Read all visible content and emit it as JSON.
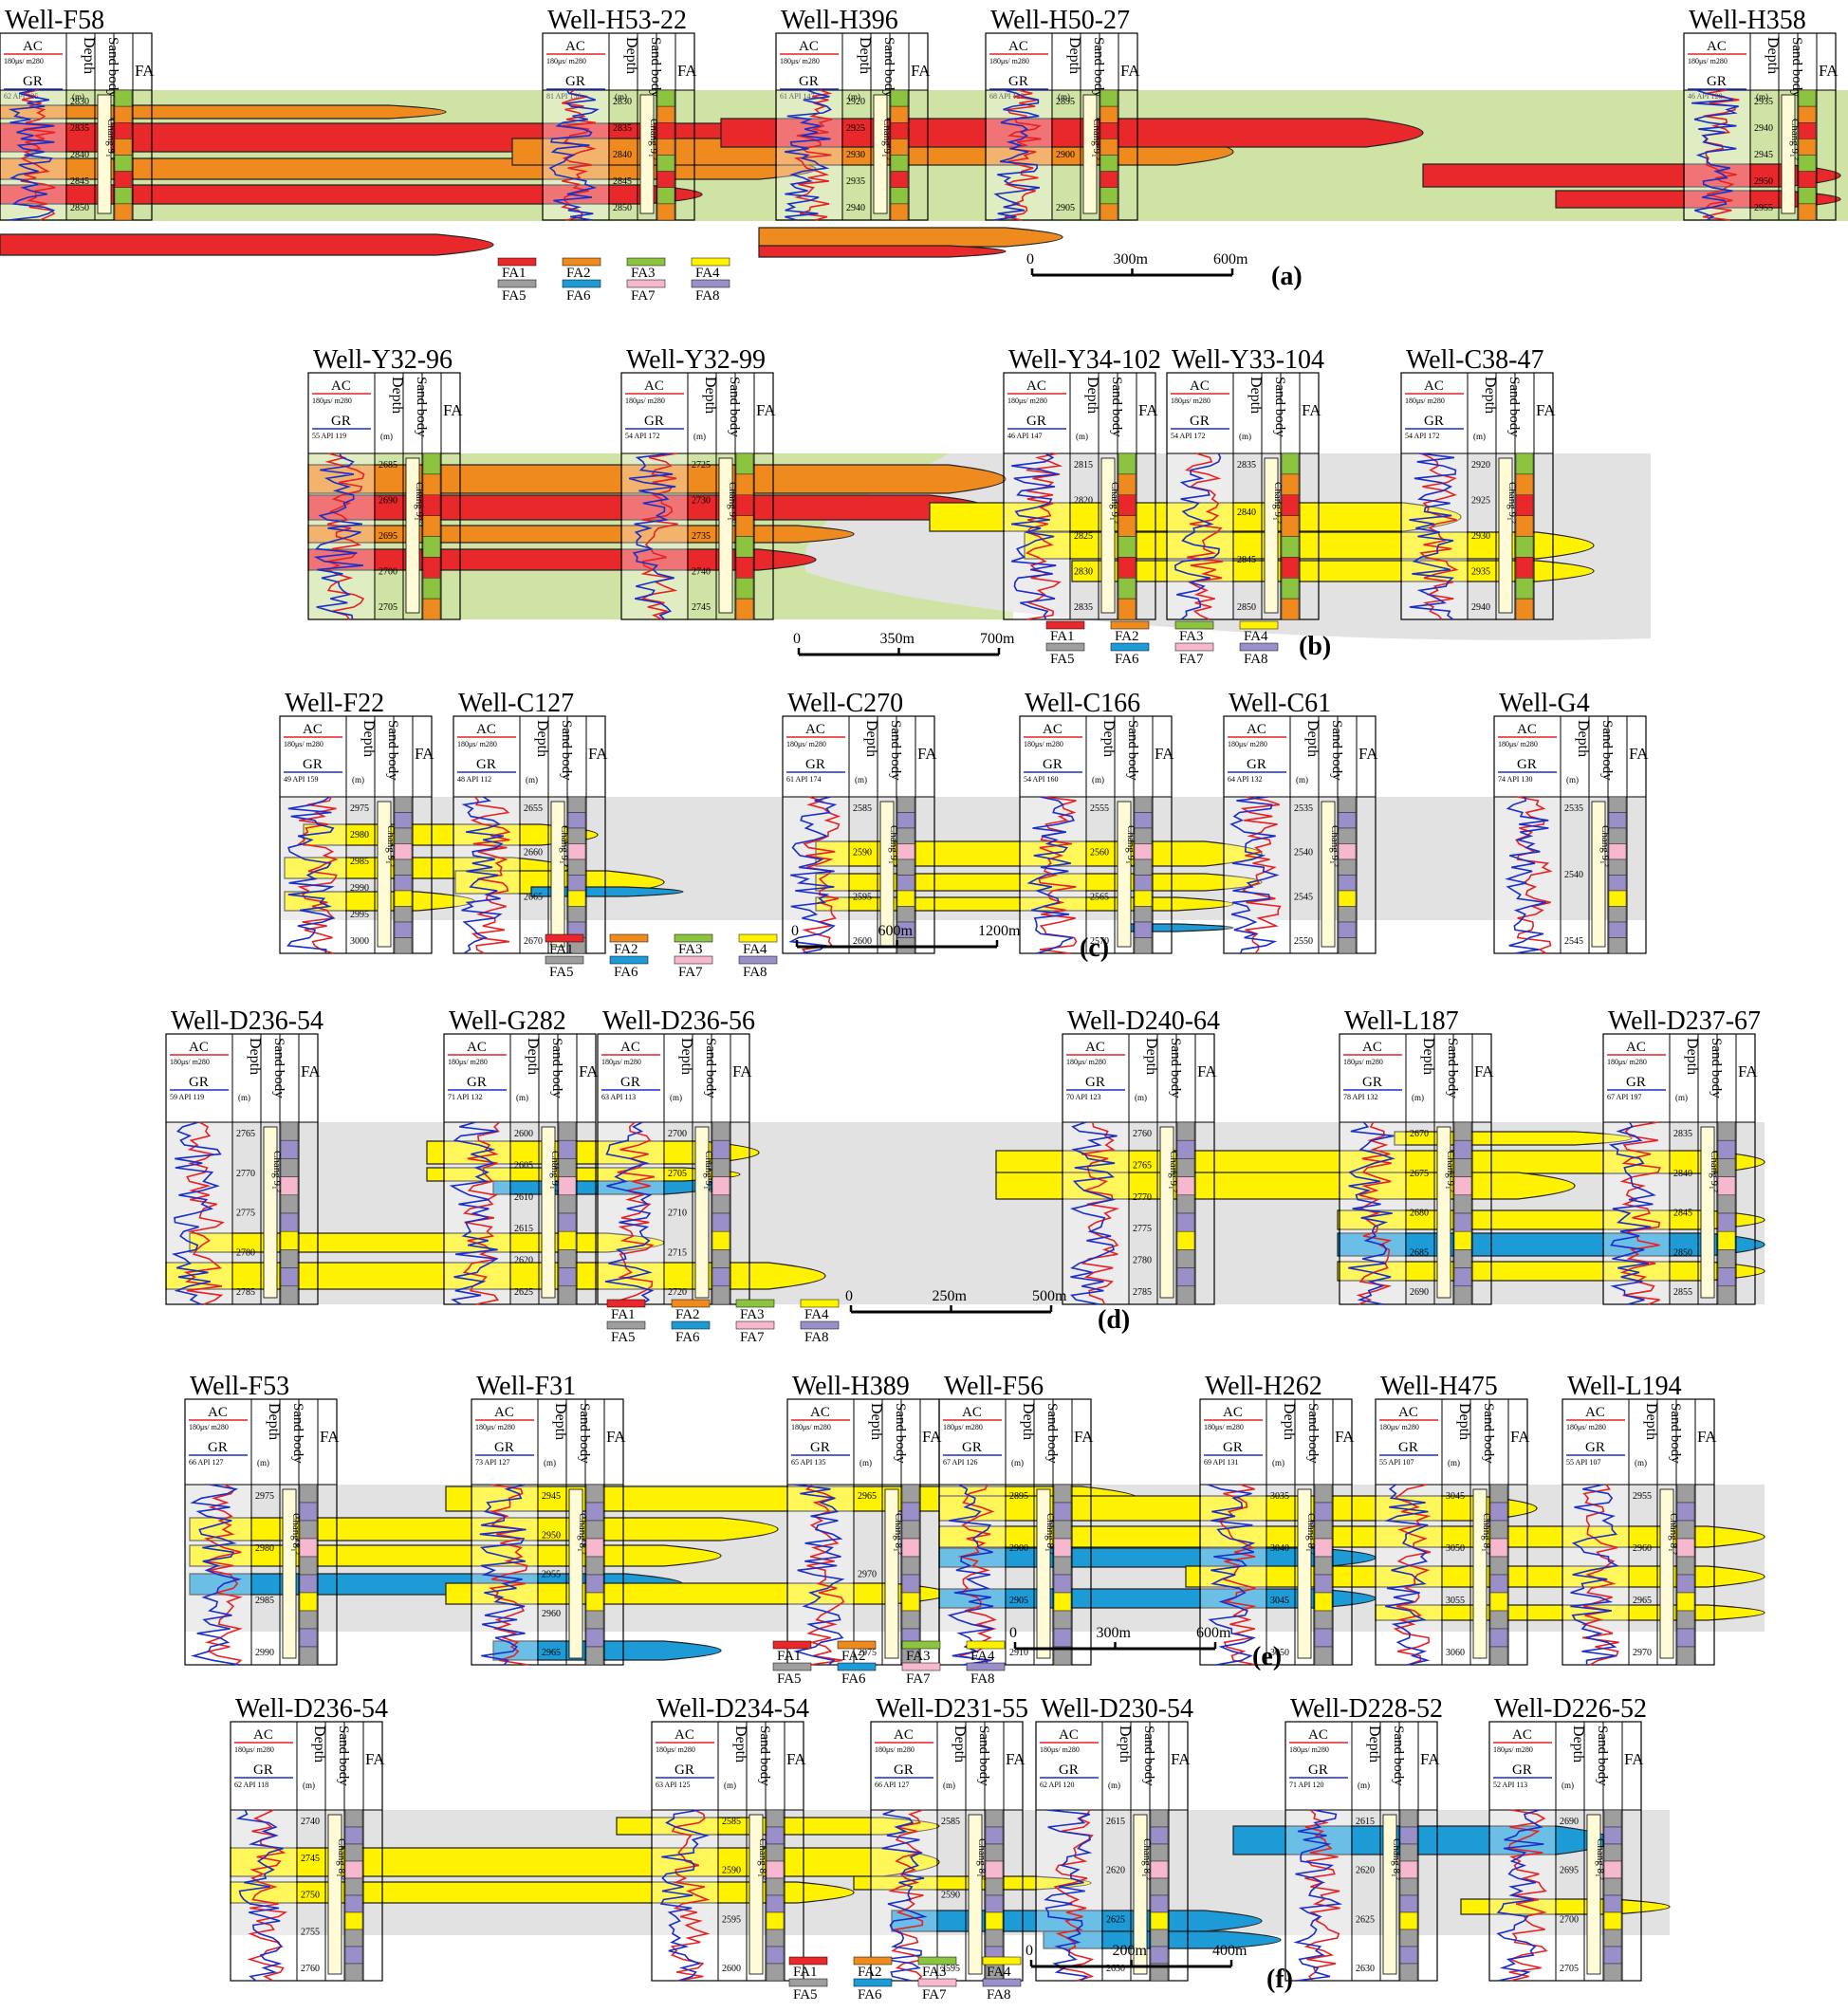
{
  "colors": {
    "FA1": "#e8282b",
    "FA2": "#ef8a1f",
    "FA3": "#8cc43f",
    "FA4": "#fff200",
    "FA5": "#9e9e9e",
    "FA6": "#1c9bd7",
    "FA7": "#f6b8cf",
    "FA8": "#9b8fc9",
    "bg_a": "#cfe4a4",
    "bg_other": "#e2e2e2",
    "ac_curve": "#e62224",
    "gr_curve": "#1a2ec8"
  },
  "legend_labels": [
    "FA1",
    "FA2",
    "FA3",
    "FA4",
    "FA5",
    "FA6",
    "FA7",
    "FA8"
  ],
  "header": {
    "ac": "AC",
    "ac_range": "180μs/ m280",
    "gr": "GR",
    "api": "API",
    "depth": "Depth",
    "unit": "(m)",
    "sand": "Sand body",
    "fa": "FA"
  },
  "panels": [
    {
      "label": "(a)",
      "bg": "bg_a",
      "scale": [
        "0",
        "300m",
        "600m"
      ],
      "wells": [
        {
          "name": "Well-F58",
          "gr_min": "62",
          "gr_max": "135",
          "depths": [
            "2830",
            "2835",
            "2840",
            "2845",
            "2850"
          ],
          "unit": "Chang 9₁²"
        },
        {
          "name": "Well-H53-22",
          "gr_min": "81",
          "gr_max": "156",
          "depths": [
            "2830",
            "2835",
            "2840",
            "2845",
            "2850"
          ],
          "unit": "Chang 9₁²"
        },
        {
          "name": "Well-H396",
          "gr_min": "61",
          "gr_max": "147",
          "depths": [
            "2920",
            "2925",
            "2930",
            "2935",
            "2940"
          ],
          "unit": "Chang 9₁²"
        },
        {
          "name": "Well-H50-27",
          "gr_min": "68",
          "gr_max": "122",
          "depths": [
            "2895",
            "2900",
            "2905"
          ],
          "unit": "Chang 9₁²"
        },
        {
          "name": "Well-H358",
          "gr_min": "46",
          "gr_max": "128",
          "depths": [
            "2935",
            "2940",
            "2945",
            "2950",
            "2955"
          ],
          "unit": "Chang 9₁²"
        }
      ]
    },
    {
      "label": "(b)",
      "bg": "bg_a",
      "scale": [
        "0",
        "350m",
        "700m"
      ],
      "wells": [
        {
          "name": "Well-Y32-96",
          "gr_min": "55",
          "gr_max": "119",
          "depths": [
            "2685",
            "2690",
            "2695",
            "2700",
            "2705"
          ],
          "unit": "Chang 9₁²"
        },
        {
          "name": "Well-Y32-99",
          "gr_min": "54",
          "gr_max": "172",
          "depths": [
            "2725",
            "2730",
            "2735",
            "2740",
            "2745"
          ],
          "unit": "Chang 9₁²"
        },
        {
          "name": "Well-Y34-102",
          "gr_min": "46",
          "gr_max": "147",
          "depths": [
            "2815",
            "2820",
            "2825",
            "2830",
            "2835"
          ],
          "unit": "Chang 9₁²"
        },
        {
          "name": "Well-Y33-104",
          "gr_min": "54",
          "gr_max": "172",
          "depths": [
            "2835",
            "2840",
            "2845",
            "2850"
          ],
          "unit": "Chang 9₁²"
        },
        {
          "name": "Well-C38-47",
          "gr_min": "54",
          "gr_max": "172",
          "depths": [
            "2920",
            "2925",
            "2930",
            "2935",
            "2940"
          ],
          "unit": "Chang 9₁²"
        }
      ]
    },
    {
      "label": "(c)",
      "bg": "bg_other",
      "scale": [
        "0",
        "600m",
        "1200m"
      ],
      "wells": [
        {
          "name": "Well-F22",
          "gr_min": "49",
          "gr_max": "159",
          "depths": [
            "2975",
            "2980",
            "2985",
            "2990",
            "2995",
            "3000"
          ],
          "unit": "Chang 9₁²"
        },
        {
          "name": "Well-C127",
          "gr_min": "48",
          "gr_max": "112",
          "depths": [
            "2655",
            "2660",
            "2665",
            "2670"
          ],
          "unit": "Chang 9₁²"
        },
        {
          "name": "Well-C270",
          "gr_min": "61",
          "gr_max": "174",
          "depths": [
            "2585",
            "2590",
            "2595",
            "2600"
          ],
          "unit": "Chang 9₁²"
        },
        {
          "name": "Well-C166",
          "gr_min": "54",
          "gr_max": "160",
          "depths": [
            "2555",
            "2560",
            "2565",
            "2570"
          ],
          "unit": "Chang 9₁²"
        },
        {
          "name": "Well-C61",
          "gr_min": "64",
          "gr_max": "132",
          "depths": [
            "2535",
            "2540",
            "2545",
            "2550"
          ],
          "unit": "Chang 9₁²"
        },
        {
          "name": "Well-G4",
          "gr_min": "74",
          "gr_max": "130",
          "depths": [
            "2535",
            "2540",
            "2545"
          ],
          "unit": "Chang 9₁²"
        }
      ]
    },
    {
      "label": "(d)",
      "bg": "bg_other",
      "scale": [
        "0",
        "250m",
        "500m"
      ],
      "wells": [
        {
          "name": "Well-D236-54",
          "gr_min": "59",
          "gr_max": "119",
          "depths": [
            "2765",
            "2770",
            "2775",
            "2780",
            "2785"
          ],
          "unit": "Chang 9₁²"
        },
        {
          "name": "Well-G282",
          "gr_min": "71",
          "gr_max": "132",
          "depths": [
            "2600",
            "2605",
            "2610",
            "2615",
            "2620",
            "2625"
          ],
          "unit": "Chang 9₁²"
        },
        {
          "name": "Well-D236-56",
          "gr_min": "63",
          "gr_max": "113",
          "depths": [
            "2700",
            "2705",
            "2710",
            "2715",
            "2720"
          ],
          "unit": "Chang 9₁²"
        },
        {
          "name": "Well-D240-64",
          "gr_min": "70",
          "gr_max": "123",
          "depths": [
            "2760",
            "2765",
            "2770",
            "2775",
            "2780",
            "2785"
          ],
          "unit": "Chang 9₁²"
        },
        {
          "name": "Well-L187",
          "gr_min": "78",
          "gr_max": "132",
          "depths": [
            "2670",
            "2675",
            "2680",
            "2685",
            "2690"
          ],
          "unit": "Chang 9₁²"
        },
        {
          "name": "Well-D237-67",
          "gr_min": "67",
          "gr_max": "197",
          "depths": [
            "2835",
            "2840",
            "2845",
            "2850",
            "2855"
          ],
          "unit": "Chang 9₁²"
        }
      ]
    },
    {
      "label": "(e)",
      "bg": "bg_other",
      "scale": [
        "0",
        "300m",
        "600m"
      ],
      "wells": [
        {
          "name": "Well-F53",
          "gr_min": "66",
          "gr_max": "127",
          "depths": [
            "2975",
            "2980",
            "2985",
            "2990"
          ],
          "unit": "Chang 8₁²"
        },
        {
          "name": "Well-F31",
          "gr_min": "73",
          "gr_max": "127",
          "depths": [
            "2945",
            "2950",
            "2955",
            "2960",
            "2965"
          ],
          "unit": "Chang 8₁²"
        },
        {
          "name": "Well-H389",
          "gr_min": "65",
          "gr_max": "135",
          "depths": [
            "2965",
            "2970",
            "2975"
          ],
          "unit": "Chang 8₁²"
        },
        {
          "name": "Well-F56",
          "gr_min": "67",
          "gr_max": "126",
          "depths": [
            "2895",
            "2900",
            "2905",
            "2910"
          ],
          "unit": "Chang 8₁²"
        },
        {
          "name": "Well-H262",
          "gr_min": "69",
          "gr_max": "131",
          "depths": [
            "3035",
            "3040",
            "3045",
            "3050"
          ],
          "unit": "Chang 8₁²"
        },
        {
          "name": "Well-H475",
          "gr_min": "55",
          "gr_max": "107",
          "depths": [
            "3045",
            "3050",
            "3055",
            "3060"
          ],
          "unit": "Chang 8₁²"
        },
        {
          "name": "Well-L194",
          "gr_min": "55",
          "gr_max": "107",
          "depths": [
            "2955",
            "2960",
            "2965",
            "2970"
          ],
          "unit": "Chang 8₁²"
        }
      ]
    },
    {
      "label": "(f)",
      "bg": "bg_other",
      "scale": [
        "0",
        "200m",
        "400m"
      ],
      "wells": [
        {
          "name": "Well-D236-54",
          "gr_min": "62",
          "gr_max": "118",
          "depths": [
            "2740",
            "2745",
            "2750",
            "2755",
            "2760"
          ],
          "unit": "Chang 8₁²"
        },
        {
          "name": "Well-D234-54",
          "gr_min": "63",
          "gr_max": "125",
          "depths": [
            "2585",
            "2590",
            "2595",
            "2600"
          ],
          "unit": "Chang 8₁²"
        },
        {
          "name": "Well-D231-55",
          "gr_min": "66",
          "gr_max": "127",
          "depths": [
            "2585",
            "2590",
            "2595"
          ],
          "unit": "Chang 8₁²"
        },
        {
          "name": "Well-D230-54",
          "gr_min": "62",
          "gr_max": "120",
          "depths": [
            "2615",
            "2620",
            "2625",
            "2630"
          ],
          "unit": "Chang 8₁²"
        },
        {
          "name": "Well-D228-52",
          "gr_min": "71",
          "gr_max": "120",
          "depths": [
            "2615",
            "2620",
            "2625",
            "2630"
          ],
          "unit": "Chang 8₁²"
        },
        {
          "name": "Well-D226-52",
          "gr_min": "52",
          "gr_max": "113",
          "depths": [
            "2690",
            "2695",
            "2700",
            "2705"
          ],
          "unit": "Chang 8₁²"
        }
      ]
    }
  ]
}
